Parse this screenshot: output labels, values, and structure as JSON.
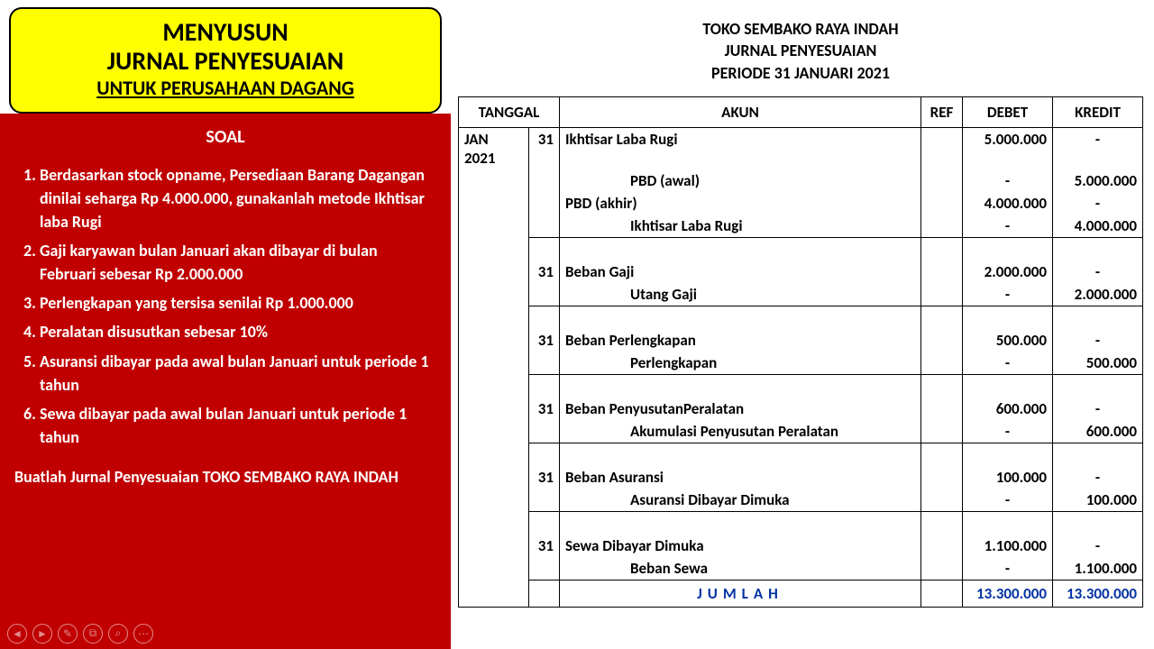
{
  "colors": {
    "title_bg": "#FFFF00",
    "title_border": "#000000",
    "title_text": "#000000",
    "soal_bg": "#C00000",
    "soal_text": "#FFFFFF",
    "table_border": "#000000",
    "total_text": "#0432A3",
    "page_bg": "#FFFFFF"
  },
  "title_box": {
    "line1": "MENYUSUN",
    "line2": "JURNAL PENYESUAIAN",
    "line3": "UNTUK PERUSAHAAN DAGANG"
  },
  "soal": {
    "heading": "SOAL",
    "items": [
      "Berdasarkan stock opname, Persediaan Barang Dagangan dinilai seharga Rp 4.000.000, gunakanlah metode Ikhtisar laba Rugi",
      "Gaji karyawan bulan Januari akan dibayar di bulan Februari sebesar Rp 2.000.000",
      "Perlengkapan yang tersisa senilai Rp 1.000.000",
      "Peralatan disusutkan sebesar 10%",
      "Asuransi dibayar pada awal bulan Januari untuk periode 1 tahun",
      "Sewa dibayar pada awal bulan Januari untuk periode 1 tahun"
    ],
    "footer": "Buatlah Jurnal Penyesuaian TOKO SEMBAKO RAYA INDAH"
  },
  "doc_heading": {
    "line1": "TOKO SEMBAKO RAYA INDAH",
    "line2": "JURNAL PENYESUAIAN",
    "line3": "PERIODE 31 JANUARI 2021"
  },
  "journal": {
    "headers": {
      "tanggal": "TANGGAL",
      "akun": "AKUN",
      "ref": "REF",
      "debet": "DEBET",
      "kredit": "KREDIT"
    },
    "month_label": "JAN 2021",
    "rows": [
      {
        "day": "31",
        "akun": "Ikhtisar Laba Rugi",
        "indent": 0,
        "debet": "5.000.000",
        "kredit": "-",
        "block_start": true
      },
      {
        "day": "",
        "akun": "PBD (awal)",
        "indent": 2,
        "debet": "-",
        "kredit": "5.000.000"
      },
      {
        "day": "",
        "akun": "PBD (akhir)",
        "indent": 0,
        "debet": "4.000.000",
        "kredit": "-"
      },
      {
        "day": "",
        "akun": "Ikhtisar Laba Rugi",
        "indent": 2,
        "debet": "-",
        "kredit": "4.000.000",
        "block_end": true
      },
      {
        "day": "",
        "akun": "",
        "indent": 0,
        "debet": "",
        "kredit": "",
        "block_start": true
      },
      {
        "day": "31",
        "akun": "Beban Gaji",
        "indent": 0,
        "debet": "2.000.000",
        "kredit": "-"
      },
      {
        "day": "",
        "akun": "Utang Gaji",
        "indent": 2,
        "debet": "-",
        "kredit": "2.000.000",
        "block_end": true
      },
      {
        "day": "",
        "akun": "",
        "indent": 0,
        "debet": "",
        "kredit": "",
        "block_start": true
      },
      {
        "day": "31",
        "akun": "Beban Perlengkapan",
        "indent": 0,
        "debet": "500.000",
        "kredit": "-"
      },
      {
        "day": "",
        "akun": "Perlengkapan",
        "indent": 2,
        "debet": "-",
        "kredit": "500.000",
        "block_end": true
      },
      {
        "day": "",
        "akun": "",
        "indent": 0,
        "debet": "",
        "kredit": "",
        "block_start": true
      },
      {
        "day": "31",
        "akun": "Beban PenyusutanPeralatan",
        "indent": 0,
        "debet": "600.000",
        "kredit": "-"
      },
      {
        "day": "",
        "akun": "Akumulasi Penyusutan Peralatan",
        "indent": 2,
        "debet": "-",
        "kredit": "600.000",
        "block_end": true
      },
      {
        "day": "",
        "akun": "",
        "indent": 0,
        "debet": "",
        "kredit": "",
        "block_start": true
      },
      {
        "day": "31",
        "akun": "Beban Asuransi",
        "indent": 0,
        "debet": "100.000",
        "kredit": "-"
      },
      {
        "day": "",
        "akun": "Asuransi Dibayar Dimuka",
        "indent": 2,
        "debet": "-",
        "kredit": "100.000",
        "block_end": true
      },
      {
        "day": "",
        "akun": "",
        "indent": 0,
        "debet": "",
        "kredit": "",
        "block_start": true
      },
      {
        "day": "31",
        "akun": "Sewa Dibayar Dimuka",
        "indent": 0,
        "debet": "1.100.000",
        "kredit": "-"
      },
      {
        "day": "",
        "akun": "Beban Sewa",
        "indent": 2,
        "debet": "-",
        "kredit": "1.100.000",
        "block_end": true
      }
    ],
    "total": {
      "label": "JUMLAH",
      "debet": "13.300.000",
      "kredit": "13.300.000"
    }
  },
  "controls": [
    "◄",
    "►",
    "✎",
    "⧉",
    "⌕",
    "⋯"
  ]
}
